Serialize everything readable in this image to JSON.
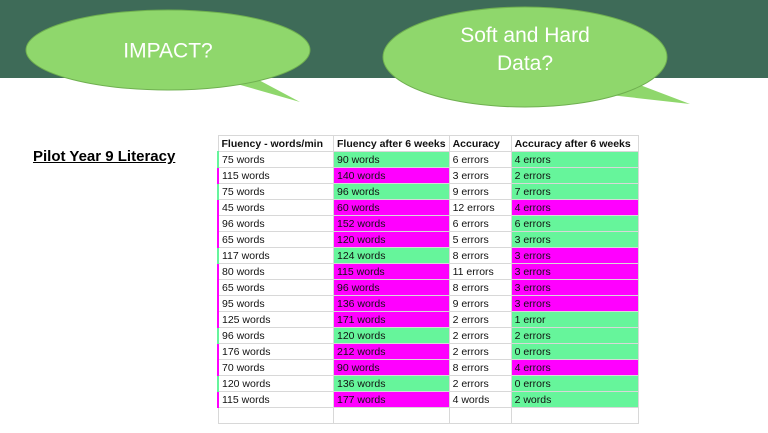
{
  "bubbles": [
    "IMPACT?",
    "Soft and Hard Data?"
  ],
  "title": "Pilot Year 9 Literacy",
  "table": {
    "header": [
      "Fluency - words/min",
      "Fluency after 6 weeks",
      "Accuracy",
      "Accuracy after 6 weeks"
    ],
    "rows": [
      {
        "cells": [
          "75 words",
          "90 words",
          "6 errors",
          "4 errors"
        ],
        "fills": [
          "#66f59b",
          "#66f59b"
        ]
      },
      {
        "cells": [
          "115 words",
          "140 words",
          "3 errors",
          "2 errors"
        ],
        "fills": [
          "#ff00ff",
          "#66f59b"
        ]
      },
      {
        "cells": [
          "75 words",
          "96 words",
          "9 errors",
          "7 errors"
        ],
        "fills": [
          "#66f59b",
          "#66f59b"
        ]
      },
      {
        "cells": [
          "45 words",
          "60 words",
          "12 errors",
          "4 errors"
        ],
        "fills": [
          "#ff00ff",
          "#ff00ff"
        ]
      },
      {
        "cells": [
          "96 words",
          "152 words",
          "6 errors",
          "6 errors"
        ],
        "fills": [
          "#ff00ff",
          "#66f59b"
        ]
      },
      {
        "cells": [
          "65 words",
          "120 words",
          "5 errors",
          "3 errors"
        ],
        "fills": [
          "#ff00ff",
          "#66f59b"
        ]
      },
      {
        "cells": [
          "117 words",
          "124 words",
          "8 errors",
          "3 errors"
        ],
        "fills": [
          "#66f59b",
          "#ff00ff"
        ]
      },
      {
        "cells": [
          "80 words",
          "115 words",
          "11 errors",
          "3 errors"
        ],
        "fills": [
          "#ff00ff",
          "#ff00ff"
        ]
      },
      {
        "cells": [
          "65 words",
          "96 words",
          "8 errors",
          "3 errors"
        ],
        "fills": [
          "#ff00ff",
          "#ff00ff"
        ]
      },
      {
        "cells": [
          "95 words",
          "136 words",
          "9 errors",
          "3 errors"
        ],
        "fills": [
          "#ff00ff",
          "#ff00ff"
        ]
      },
      {
        "cells": [
          "125 words",
          "171 words",
          "2 errors",
          "1 error"
        ],
        "fills": [
          "#ff00ff",
          "#66f59b"
        ]
      },
      {
        "cells": [
          "96 words",
          "120 words",
          "2 errors",
          "2 errors"
        ],
        "fills": [
          "#66f59b",
          "#66f59b"
        ]
      },
      {
        "cells": [
          "176 words",
          "212 words",
          "2 errors",
          "0 errors"
        ],
        "fills": [
          "#ff00ff",
          "#66f59b"
        ]
      },
      {
        "cells": [
          "70 words",
          "90 words",
          "8 errors",
          "4 errors"
        ],
        "fills": [
          "#ff00ff",
          "#ff00ff"
        ]
      },
      {
        "cells": [
          "120 words",
          "136 words",
          "2 errors",
          "0 errors"
        ],
        "fills": [
          "#66f59b",
          "#66f59b"
        ]
      },
      {
        "cells": [
          "115 words",
          "177 words",
          "4 words",
          "2 words"
        ],
        "fills": [
          "#ff00ff",
          "#66f59b"
        ]
      }
    ]
  }
}
